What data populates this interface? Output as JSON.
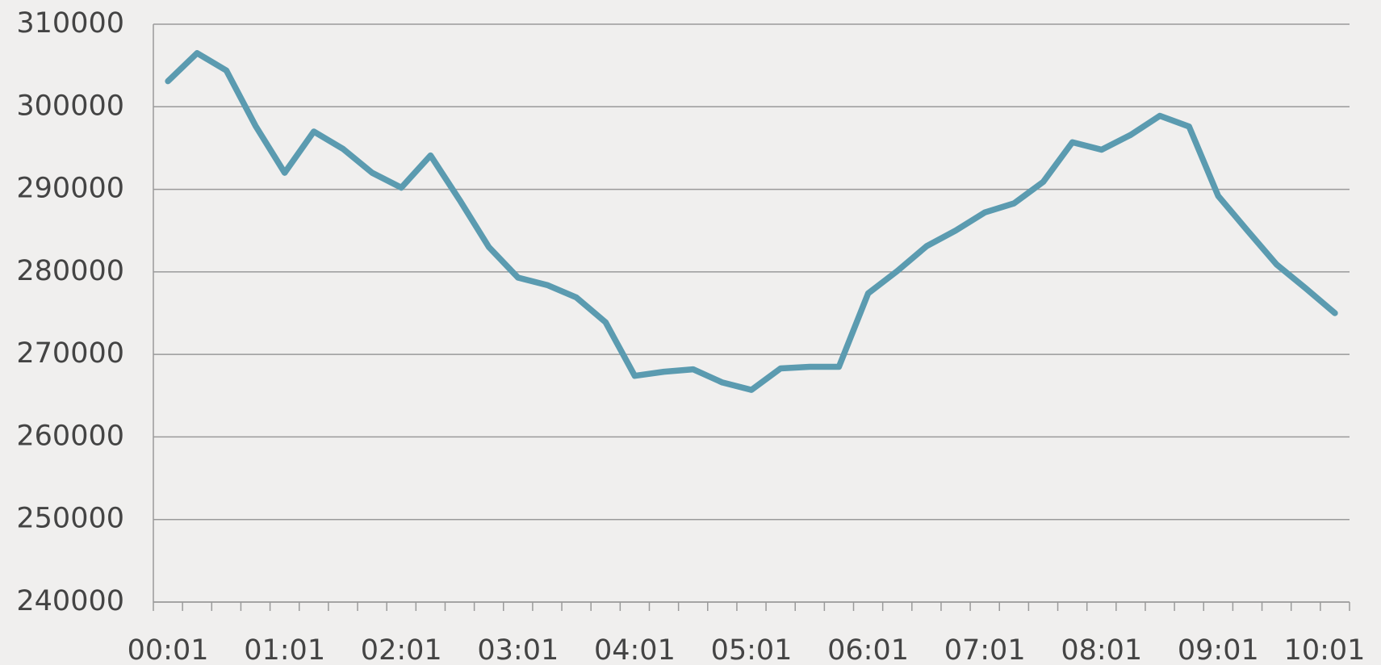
{
  "chart_data": {
    "type": "line",
    "categories": [
      "00:01",
      null,
      null,
      null,
      "01:01",
      null,
      null,
      null,
      "02:01",
      null,
      null,
      null,
      "03:01",
      null,
      null,
      null,
      "04:01",
      null,
      null,
      null,
      "05:01",
      null,
      null,
      null,
      "06:01",
      null,
      null,
      null,
      "07:01",
      null,
      null,
      null,
      "08:01",
      null,
      null,
      null,
      "09:01",
      null,
      null,
      null,
      "10:01"
    ],
    "values": [
      303100,
      306500,
      304400,
      297700,
      292000,
      297000,
      294900,
      292000,
      290200,
      294100,
      288700,
      283000,
      279300,
      278400,
      276900,
      273900,
      267400,
      267900,
      268200,
      266600,
      265700,
      268300,
      268500,
      268500,
      277400,
      280100,
      283100,
      285000,
      287200,
      288300,
      290900,
      295700,
      294800,
      296600,
      298900,
      297600,
      289200,
      285000,
      280900,
      278000,
      275000
    ],
    "color": "#5b9bb0",
    "ylim": [
      240000,
      310000
    ],
    "yticks": [
      240000,
      250000,
      260000,
      270000,
      280000,
      290000,
      300000,
      310000
    ],
    "grid": true
  }
}
